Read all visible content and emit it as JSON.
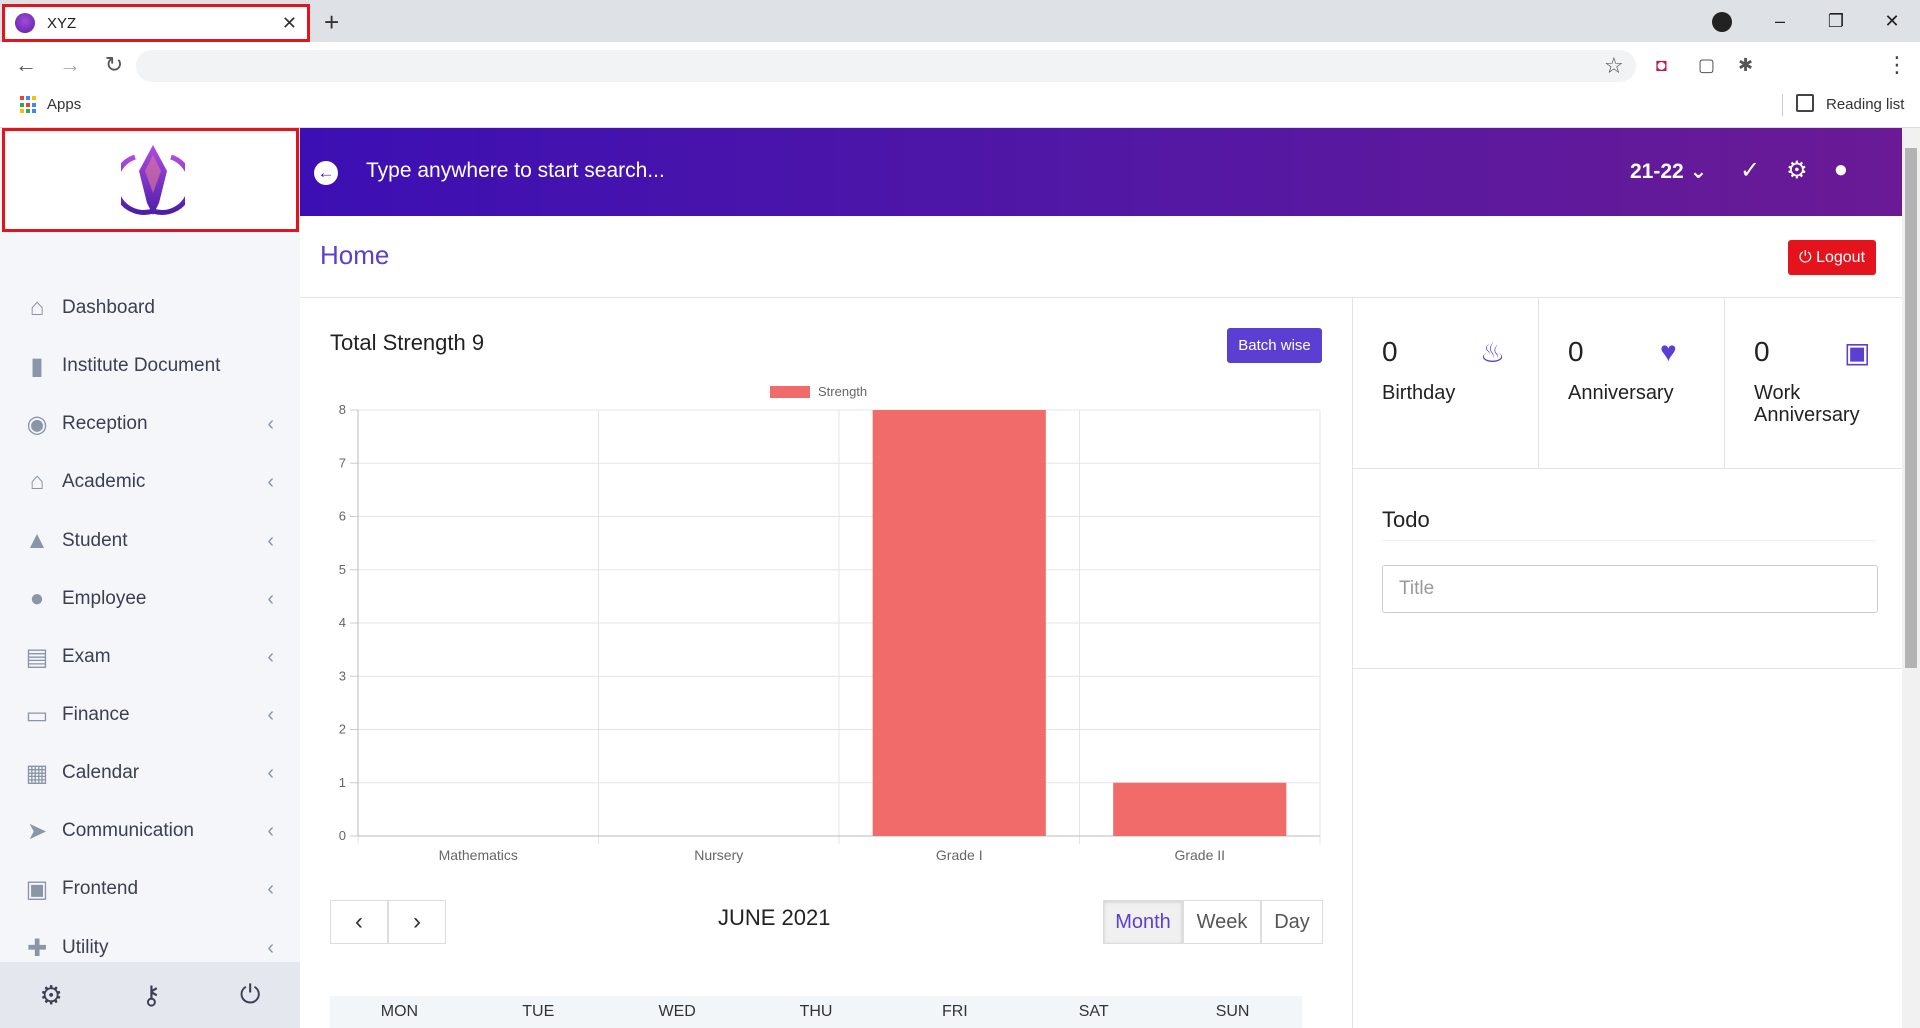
{
  "browser": {
    "tab_title": "XYZ",
    "new_tab": "+",
    "bookmarks_apps": "Apps",
    "reading_list": "Reading list",
    "window_controls": [
      "–",
      "❐",
      "✕"
    ]
  },
  "sidebar": {
    "items": [
      {
        "label": "Dashboard",
        "icon": "home-icon",
        "glyph": "⌂",
        "arrow": false
      },
      {
        "label": "Institute Document",
        "icon": "document-icon",
        "glyph": "▮",
        "arrow": false
      },
      {
        "label": "Reception",
        "icon": "user-circle-icon",
        "glyph": "◉",
        "arrow": true
      },
      {
        "label": "Academic",
        "icon": "school-icon",
        "glyph": "⌂",
        "arrow": true
      },
      {
        "label": "Student",
        "icon": "graduation-cap-icon",
        "glyph": "▲",
        "arrow": true
      },
      {
        "label": "Employee",
        "icon": "user-tie-icon",
        "glyph": "●",
        "arrow": true
      },
      {
        "label": "Exam",
        "icon": "file-alt-icon",
        "glyph": "▤",
        "arrow": true
      },
      {
        "label": "Finance",
        "icon": "money-bill-icon",
        "glyph": "▭",
        "arrow": true
      },
      {
        "label": "Calendar",
        "icon": "calendar-icon",
        "glyph": "▦",
        "arrow": true
      },
      {
        "label": "Communication",
        "icon": "paper-plane-icon",
        "glyph": "➤",
        "arrow": true
      },
      {
        "label": "Frontend",
        "icon": "briefcase-icon",
        "glyph": "▣",
        "arrow": true
      },
      {
        "label": "Utility",
        "icon": "puzzle-icon",
        "glyph": "✚",
        "arrow": true
      }
    ],
    "footer": [
      "settings-icon",
      "key-icon",
      "power-icon"
    ]
  },
  "topbar": {
    "search_placeholder": "Type anywhere to start search...",
    "session": "21-22"
  },
  "page": {
    "title": "Home",
    "logout_label": "Logout"
  },
  "strength": {
    "title": "Total Strength 9",
    "batch_button": "Batch wise"
  },
  "chart_data": {
    "type": "bar",
    "categories": [
      "Mathematics",
      "Nursery",
      "Grade I",
      "Grade II"
    ],
    "series": [
      {
        "name": "Strength",
        "values": [
          0,
          0,
          8,
          1
        ],
        "color": "#f26b6b"
      }
    ],
    "ylim": [
      0,
      8
    ],
    "yticks": [
      0,
      1,
      2,
      3,
      4,
      5,
      6,
      7,
      8
    ],
    "legend": "top-center",
    "grid": true
  },
  "calendar": {
    "title": "JUNE 2021",
    "views": [
      "Month",
      "Week",
      "Day"
    ],
    "active_view": "Month",
    "days": [
      "MON",
      "TUE",
      "WED",
      "THU",
      "FRI",
      "SAT",
      "SUN"
    ]
  },
  "stats": [
    {
      "count": "0",
      "label": "Birthday",
      "icon": "birthday-cake-icon"
    },
    {
      "count": "0",
      "label": "Anniversary",
      "icon": "heartbeat-icon"
    },
    {
      "count": "0",
      "label": "Work Anniversary",
      "icon": "gift-icon"
    }
  ],
  "todo": {
    "title": "Todo",
    "placeholder": "Title"
  },
  "colors": {
    "accent": "#5b3fd2",
    "danger": "#e4131c",
    "bar": "#f26b6b"
  }
}
